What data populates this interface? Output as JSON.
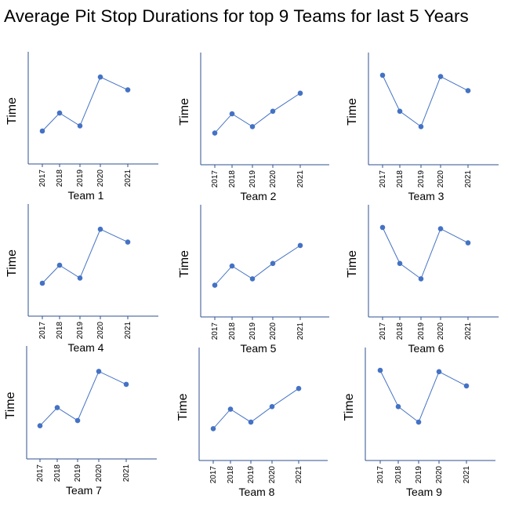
{
  "title": "Average Pit Stop Durations for top 9 Teams for last 5 Years",
  "colors": {
    "line": "#4472C4",
    "marker": "#4472C4",
    "axis": "#2F528F"
  },
  "chart_data": [
    {
      "type": "line",
      "team_label": "Team 1",
      "ylabel": "Time",
      "categories": [
        "2017",
        "2018",
        "2019",
        "2020",
        "2021"
      ],
      "values": [
        2.2,
        3.6,
        2.6,
        6.4,
        5.4
      ],
      "ylim": [
        0,
        8
      ],
      "grid": false
    },
    {
      "type": "line",
      "team_label": "Team 2",
      "ylabel": "Time",
      "categories": [
        "2017",
        "2018",
        "2019",
        "2020",
        "2021"
      ],
      "values": [
        2.1,
        3.6,
        2.6,
        3.8,
        5.2
      ],
      "ylim": [
        0,
        8
      ],
      "grid": false
    },
    {
      "type": "line",
      "team_label": "Team 3",
      "ylabel": "Time",
      "categories": [
        "2017",
        "2018",
        "2019",
        "2020",
        "2021"
      ],
      "values": [
        6.6,
        3.8,
        2.6,
        6.5,
        5.4
      ],
      "ylim": [
        0,
        8
      ],
      "grid": false
    },
    {
      "type": "line",
      "team_label": "Team 4",
      "ylabel": "Time",
      "categories": [
        "2017",
        "2018",
        "2019",
        "2020",
        "2021"
      ],
      "values": [
        2.2,
        3.6,
        2.6,
        6.4,
        5.4
      ],
      "ylim": [
        0,
        8
      ],
      "grid": false
    },
    {
      "type": "line",
      "team_label": "Team 5",
      "ylabel": "Time",
      "categories": [
        "2017",
        "2018",
        "2019",
        "2020",
        "2021"
      ],
      "values": [
        2.1,
        3.6,
        2.6,
        3.8,
        5.2
      ],
      "ylim": [
        0,
        8
      ],
      "grid": false
    },
    {
      "type": "line",
      "team_label": "Team 6",
      "ylabel": "Time",
      "categories": [
        "2017",
        "2018",
        "2019",
        "2020",
        "2021"
      ],
      "values": [
        6.6,
        3.8,
        2.6,
        6.5,
        5.4
      ],
      "ylim": [
        0,
        8
      ],
      "grid": false
    },
    {
      "type": "line",
      "team_label": "Team 7",
      "ylabel": "Time",
      "categories": [
        "2017",
        "2018",
        "2019",
        "2020",
        "2021"
      ],
      "values": [
        2.2,
        3.6,
        2.6,
        6.4,
        5.4
      ],
      "ylim": [
        0,
        8
      ],
      "grid": false
    },
    {
      "type": "line",
      "team_label": "Team 8",
      "ylabel": "Time",
      "categories": [
        "2017",
        "2018",
        "2019",
        "2020",
        "2021"
      ],
      "values": [
        2.1,
        3.6,
        2.6,
        3.8,
        5.2
      ],
      "ylim": [
        0,
        8
      ],
      "grid": false
    },
    {
      "type": "line",
      "team_label": "Team 9",
      "ylabel": "Time",
      "categories": [
        "2017",
        "2018",
        "2019",
        "2020",
        "2021"
      ],
      "values": [
        6.6,
        3.8,
        2.6,
        6.5,
        5.4
      ],
      "ylim": [
        0,
        8
      ],
      "grid": false
    }
  ]
}
